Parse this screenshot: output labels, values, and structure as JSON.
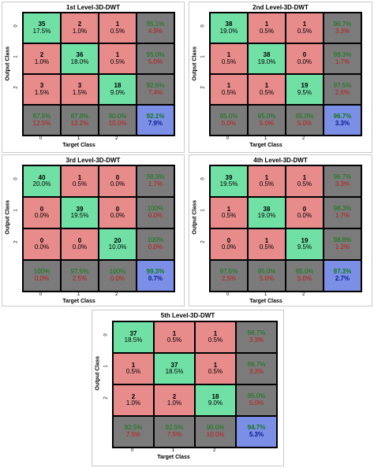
{
  "colors": {
    "correct": "#70e0a5",
    "wrong": "#e78b8b",
    "summary": "#7b7b7b",
    "total": "#7b8fe6",
    "pct_good": "#0f7a12",
    "pct_bad": "#c01a1a",
    "total_text": "#0b1a8c"
  },
  "chart_data": [
    {
      "type": "heatmap",
      "title": "1st Level-3D-DWT",
      "xlabel": "Target Class",
      "ylabel": "Output Class",
      "ticks": [
        "0",
        "1",
        "2"
      ],
      "matrix": [
        [
          {
            "n": "35",
            "p": "17.5%"
          },
          {
            "n": "2",
            "p": "1.0%"
          },
          {
            "n": "1",
            "p": "0.5%"
          }
        ],
        [
          {
            "n": "2",
            "p": "1.0%"
          },
          {
            "n": "36",
            "p": "18.0%"
          },
          {
            "n": "1",
            "p": "0.5%"
          }
        ],
        [
          {
            "n": "3",
            "p": "1.5%"
          },
          {
            "n": "3",
            "p": "1.5%"
          },
          {
            "n": "18",
            "p": "9.0%"
          }
        ]
      ],
      "row_summary": [
        [
          "95.1%",
          "4.9%"
        ],
        [
          "95.0%",
          "5.0%"
        ],
        [
          "92.6%",
          "7.4%"
        ]
      ],
      "col_summary": [
        [
          "87.5%",
          "12.5%"
        ],
        [
          "87.8%",
          "12.2%"
        ],
        [
          "90.0%",
          "10.0%"
        ]
      ],
      "total": [
        "92.1%",
        "7.9%"
      ]
    },
    {
      "type": "heatmap",
      "title": "2nd Level-3D-DWT",
      "xlabel": "Target Class",
      "ylabel": "Output Class",
      "ticks": [
        "0",
        "1",
        "2"
      ],
      "matrix": [
        [
          {
            "n": "38",
            "p": "19.0%"
          },
          {
            "n": "1",
            "p": "0.5%"
          },
          {
            "n": "1",
            "p": "0.5%"
          }
        ],
        [
          {
            "n": "1",
            "p": "0.5%"
          },
          {
            "n": "38",
            "p": "19.0%"
          },
          {
            "n": "0",
            "p": "0.0%"
          }
        ],
        [
          {
            "n": "1",
            "p": "0.5%"
          },
          {
            "n": "1",
            "p": "0.5%"
          },
          {
            "n": "19",
            "p": "9.5%"
          }
        ]
      ],
      "row_summary": [
        [
          "96.7%",
          "3.3%"
        ],
        [
          "98.3%",
          "1.7%"
        ],
        [
          "97.5%",
          "2.5%"
        ]
      ],
      "col_summary": [
        [
          "95.0%",
          "5.0%"
        ],
        [
          "95.0%",
          "5.0%"
        ],
        [
          "95.0%",
          "5.0%"
        ]
      ],
      "total": [
        "96.7%",
        "3.3%"
      ]
    },
    {
      "type": "heatmap",
      "title": "3rd Level-3D-DWT",
      "xlabel": "Target Class",
      "ylabel": "Output Class",
      "ticks": [
        "0",
        "1",
        "2"
      ],
      "matrix": [
        [
          {
            "n": "40",
            "p": "20.0%"
          },
          {
            "n": "1",
            "p": "0.5%"
          },
          {
            "n": "0",
            "p": "0.0%"
          }
        ],
        [
          {
            "n": "0",
            "p": "0.0%"
          },
          {
            "n": "39",
            "p": "19.5%"
          },
          {
            "n": "0",
            "p": "0.0%"
          }
        ],
        [
          {
            "n": "0",
            "p": "0.0%"
          },
          {
            "n": "0",
            "p": "0.0%"
          },
          {
            "n": "20",
            "p": "10.0%"
          }
        ]
      ],
      "row_summary": [
        [
          "98.3%",
          "1.7%"
        ],
        [
          "100%",
          "0.0%"
        ],
        [
          "100%",
          "0.0%"
        ]
      ],
      "col_summary": [
        [
          "100%",
          "0.0%"
        ],
        [
          "97.5%",
          "2.5%"
        ],
        [
          "100%",
          "0.0%"
        ]
      ],
      "total": [
        "99.3%",
        "0.7%"
      ]
    },
    {
      "type": "heatmap",
      "title": "4th Level-3D-DWT",
      "xlabel": "Target Class",
      "ylabel": "Output Class",
      "ticks": [
        "0",
        "1",
        "2"
      ],
      "matrix": [
        [
          {
            "n": "39",
            "p": "19.5%"
          },
          {
            "n": "1",
            "p": "0.5%"
          },
          {
            "n": "1",
            "p": "0.5%"
          }
        ],
        [
          {
            "n": "1",
            "p": "0.5%"
          },
          {
            "n": "38",
            "p": "19.0%"
          },
          {
            "n": "0",
            "p": "0.0%"
          }
        ],
        [
          {
            "n": "0",
            "p": "0.0%"
          },
          {
            "n": "1",
            "p": "0.5%"
          },
          {
            "n": "19",
            "p": "9.5%"
          }
        ]
      ],
      "row_summary": [
        [
          "96.7%",
          "3.3%"
        ],
        [
          "98.3%",
          "1.7%"
        ],
        [
          "98.8%",
          "1.2%"
        ]
      ],
      "col_summary": [
        [
          "97.5%",
          "2.5%"
        ],
        [
          "95.0%",
          "5.0%"
        ],
        [
          "95.0%",
          "5.0%"
        ]
      ],
      "total": [
        "97.3%",
        "2.7%"
      ]
    },
    {
      "type": "heatmap",
      "title": "5th Level-3D-DWT",
      "xlabel": "Target Class",
      "ylabel": "Output Class",
      "ticks": [
        "0",
        "1",
        "2"
      ],
      "matrix": [
        [
          {
            "n": "37",
            "p": "18.5%"
          },
          {
            "n": "1",
            "p": "0.5%"
          },
          {
            "n": "1",
            "p": "0.5%"
          }
        ],
        [
          {
            "n": "1",
            "p": "0.5%"
          },
          {
            "n": "37",
            "p": "18.5%"
          },
          {
            "n": "1",
            "p": "0.5%"
          }
        ],
        [
          {
            "n": "2",
            "p": "1.0%"
          },
          {
            "n": "2",
            "p": "1.0%"
          },
          {
            "n": "18",
            "p": "9.0%"
          }
        ]
      ],
      "row_summary": [
        [
          "96.7%",
          "3.3%"
        ],
        [
          "96.7%",
          "3.3%"
        ],
        [
          "95.0%",
          "5.0%"
        ]
      ],
      "col_summary": [
        [
          "92.5%",
          "7.5%"
        ],
        [
          "92.5%",
          "7.5%"
        ],
        [
          "90.0%",
          "10.0%"
        ]
      ],
      "total": [
        "94.7%",
        "5.3%"
      ]
    }
  ]
}
